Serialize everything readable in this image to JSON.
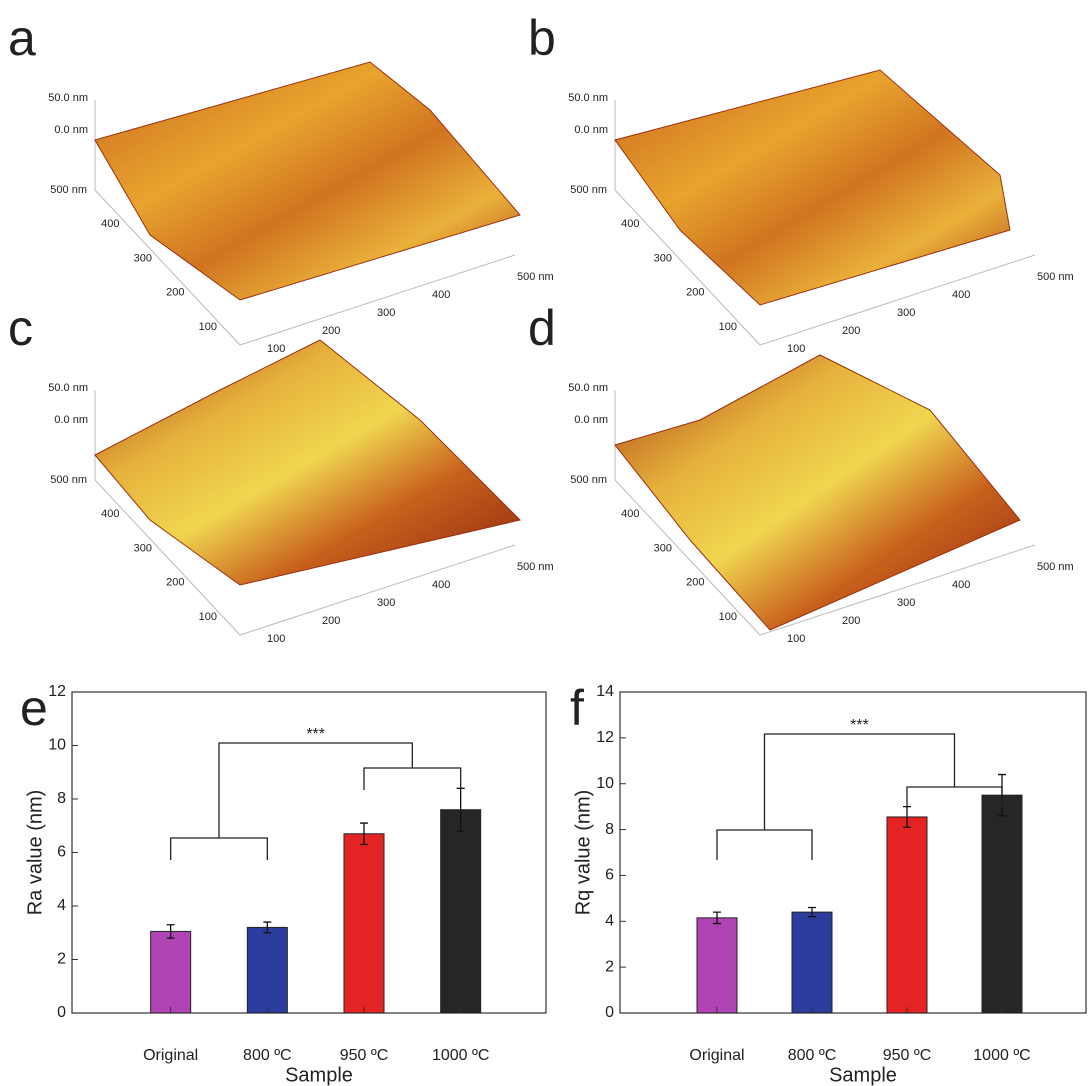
{
  "afm_panels": [
    {
      "label": "a",
      "z_labels": [
        "50.0 nm",
        "0.0 nm"
      ],
      "y_labels": [
        "500 nm",
        "400",
        "300",
        "200",
        "100"
      ],
      "x_labels": [
        "100",
        "200",
        "300",
        "400",
        "500 nm"
      ]
    },
    {
      "label": "b",
      "z_labels": [
        "50.0 nm",
        "0.0 nm"
      ],
      "y_labels": [
        "500 nm",
        "400",
        "300",
        "200",
        "100"
      ],
      "x_labels": [
        "100",
        "200",
        "300",
        "400",
        "500 nm"
      ]
    },
    {
      "label": "c",
      "z_labels": [
        "50.0 nm",
        "0.0 nm"
      ],
      "y_labels": [
        "500 nm",
        "400",
        "300",
        "200",
        "100"
      ],
      "x_labels": [
        "100",
        "200",
        "300",
        "400",
        "500 nm"
      ]
    },
    {
      "label": "d",
      "z_labels": [
        "50.0 nm",
        "0.0 nm"
      ],
      "y_labels": [
        "500 nm",
        "400",
        "300",
        "200",
        "100"
      ],
      "x_labels": [
        "100",
        "200",
        "300",
        "400",
        "500 nm"
      ]
    }
  ],
  "chart_data": [
    {
      "type": "bar",
      "panel_label": "e",
      "x_label": "Sample",
      "y_label": "Ra value (nm)",
      "categories": [
        "Original",
        "800 ºC",
        "950 ºC",
        "1000 ºC"
      ],
      "values": [
        3.05,
        3.2,
        6.7,
        7.6
      ],
      "errors": [
        0.25,
        0.2,
        0.4,
        0.8
      ],
      "colors": [
        "#b044b4",
        "#2c3c9c",
        "#e42424",
        "#262626"
      ],
      "annotation": "***",
      "ylim": [
        0,
        12
      ],
      "yticks": [
        0,
        2,
        4,
        6,
        8,
        10,
        12
      ]
    },
    {
      "type": "bar",
      "panel_label": "f",
      "x_label": "Sample",
      "y_label": "Rq value (nm)",
      "categories": [
        "Original",
        "800 ºC",
        "950 ºC",
        "1000 ºC"
      ],
      "values": [
        4.15,
        4.4,
        8.55,
        9.5
      ],
      "errors": [
        0.25,
        0.2,
        0.45,
        0.9
      ],
      "colors": [
        "#b044b4",
        "#2c3c9c",
        "#e42424",
        "#262626"
      ],
      "annotation": "***",
      "ylim": [
        0,
        14
      ],
      "yticks": [
        0,
        2,
        4,
        6,
        8,
        10,
        12,
        14
      ]
    }
  ]
}
